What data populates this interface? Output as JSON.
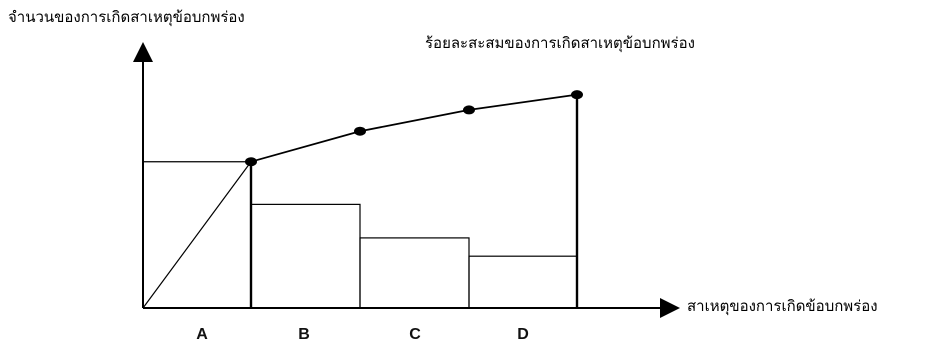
{
  "chart_data": {
    "type": "bar",
    "title": "",
    "ylabel": "จำนวนของการเกิดสาเหตุข้อบกพร่อง",
    "xlabel": "สาเหตุของการเกิดข้อบกพร่อง",
    "cumulative_label": "ร้อยละสะสมของการเกิดสาเหตุข้อบกพร่อง",
    "categories": [
      "A",
      "B",
      "C",
      "D"
    ],
    "series": [
      {
        "type": "bar",
        "values": [
          48,
          34,
          23,
          17
        ]
      },
      {
        "type": "line",
        "values": [
          48,
          58,
          65,
          70
        ]
      }
    ],
    "ylim": [
      0,
      84
    ],
    "grid": false,
    "legend": "none"
  }
}
